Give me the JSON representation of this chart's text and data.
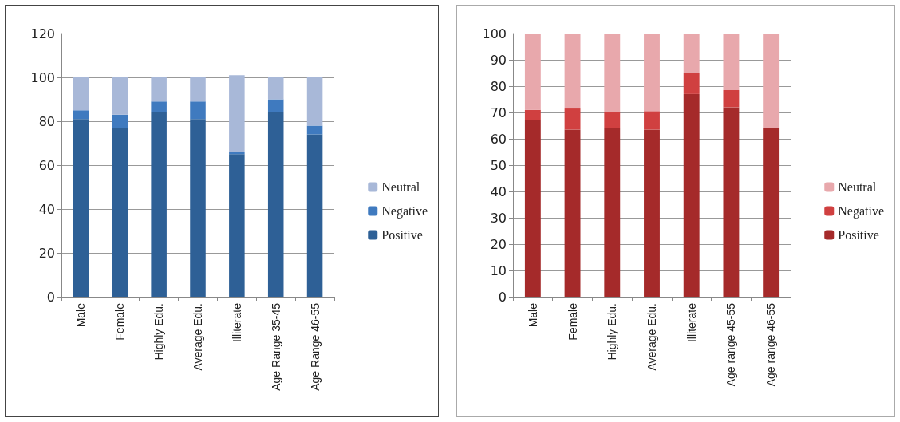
{
  "chart_data": [
    {
      "type": "bar",
      "stacked": true,
      "categories": [
        "Male",
        "Female",
        "Highly Edu.",
        "Average Edu.",
        "Illiterate",
        "Age Range 35-45",
        "Age Range 46-55"
      ],
      "series": [
        {
          "name": "Positive",
          "color": "#2e6096",
          "values": [
            81,
            77,
            84,
            81,
            65,
            84,
            74
          ]
        },
        {
          "name": "Negative",
          "color": "#3f7abf",
          "values": [
            4,
            6,
            5,
            8,
            1,
            6,
            4
          ]
        },
        {
          "name": "Neutral",
          "color": "#a8b8d8",
          "values": [
            15,
            17,
            11,
            11,
            35,
            10,
            22
          ]
        }
      ],
      "ylim": [
        0,
        120
      ],
      "yticks": [
        0,
        20,
        40,
        60,
        80,
        100,
        120
      ],
      "grid": "y",
      "legend": "right"
    },
    {
      "type": "bar",
      "stacked": true,
      "categories": [
        "Male",
        "Female",
        "Highly Edu.",
        "Average Edu.",
        "Illiterate",
        "Age range 45-55",
        "Age range 46-55"
      ],
      "series": [
        {
          "name": "Positive",
          "color": "#a52a2a",
          "values": [
            67,
            63.5,
            64,
            63.5,
            77,
            72,
            64
          ]
        },
        {
          "name": "Negative",
          "color": "#d04040",
          "values": [
            4,
            8,
            6,
            7,
            8,
            6.5,
            0
          ]
        },
        {
          "name": "Neutral",
          "color": "#e8a8ac",
          "values": [
            29,
            28.5,
            30,
            29.5,
            15,
            21.5,
            36
          ]
        }
      ],
      "ylim": [
        0,
        100
      ],
      "yticks": [
        0,
        10,
        20,
        30,
        40,
        50,
        60,
        70,
        80,
        90,
        100
      ],
      "grid": "y",
      "legend": "right"
    }
  ]
}
